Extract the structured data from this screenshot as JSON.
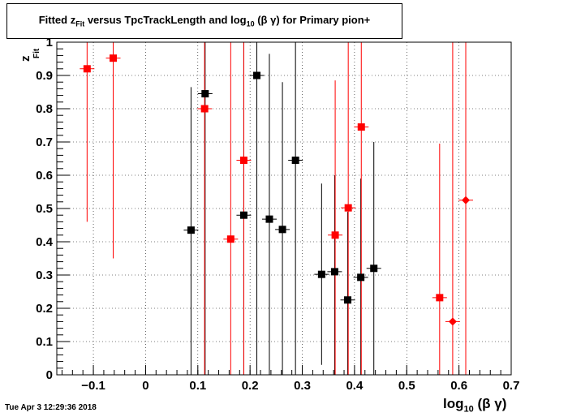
{
  "title": {
    "prefix": "Fitted  z",
    "sub": "Fit",
    "middle": "  versus TpcTrackLength and log",
    "sub2": "10",
    "suffix": " (β γ) for Primary pion+"
  },
  "ylabel": {
    "main": "z",
    "sub": "Fit"
  },
  "xlabel": {
    "main": "log",
    "sub": "10",
    "suffix": " (β γ)"
  },
  "timestamp": "Tue Apr  3 12:29:36 2018",
  "chart_data": {
    "type": "scatter",
    "xlim": [
      -0.17,
      0.7
    ],
    "ylim": [
      0,
      1
    ],
    "x_ticks": [
      -0.1,
      0,
      0.1,
      0.2,
      0.3,
      0.4,
      0.5,
      0.6,
      0.7
    ],
    "x_tick_labels": [
      "−0.1",
      "0",
      "0.1",
      "0.2",
      "0.3",
      "0.4",
      "0.5",
      "0.6",
      "0.7"
    ],
    "y_ticks": [
      0,
      0.1,
      0.2,
      0.3,
      0.4,
      0.5,
      0.6,
      0.7,
      0.8,
      0.9,
      1
    ],
    "y_tick_labels": [
      "0",
      "0.1",
      "0.2",
      "0.3",
      "0.4",
      "0.5",
      "0.6",
      "0.7",
      "0.8",
      "0.9",
      "1"
    ],
    "grid": true,
    "series": [
      {
        "color": "#000000",
        "marker": "square",
        "points": [
          {
            "x": 0.087,
            "y": 0.435,
            "lo": 0.0,
            "hi": 0.865
          },
          {
            "x": 0.114,
            "y": 0.845,
            "lo": 0.0,
            "hi": 1.0
          },
          {
            "x": 0.188,
            "y": 0.48,
            "lo": 0.0,
            "hi": 1.0
          },
          {
            "x": 0.213,
            "y": 0.9,
            "lo": 0.0,
            "hi": 1.0
          },
          {
            "x": 0.237,
            "y": 0.468,
            "lo": 0.0,
            "hi": 0.965
          },
          {
            "x": 0.262,
            "y": 0.437,
            "lo": 0.0,
            "hi": 0.88
          },
          {
            "x": 0.287,
            "y": 0.645,
            "lo": 0.0,
            "hi": 1.0
          },
          {
            "x": 0.337,
            "y": 0.302,
            "lo": 0.03,
            "hi": 0.575
          },
          {
            "x": 0.362,
            "y": 0.31,
            "lo": 0.0,
            "hi": 0.6
          },
          {
            "x": 0.387,
            "y": 0.225,
            "lo": 0.0,
            "hi": 0.49
          },
          {
            "x": 0.412,
            "y": 0.293,
            "lo": 0.0,
            "hi": 0.59
          },
          {
            "x": 0.437,
            "y": 0.32,
            "lo": 0.0,
            "hi": 0.7
          }
        ]
      },
      {
        "color": "#ff0000",
        "marker": "square",
        "points": [
          {
            "x": -0.112,
            "y": 0.92,
            "lo": 0.46,
            "hi": 1.0
          },
          {
            "x": -0.062,
            "y": 0.952,
            "lo": 0.35,
            "hi": 1.0
          },
          {
            "x": 0.113,
            "y": 0.8,
            "lo": 0.0,
            "hi": 1.0
          },
          {
            "x": 0.163,
            "y": 0.408,
            "lo": 0.0,
            "hi": 1.0
          },
          {
            "x": 0.188,
            "y": 0.645,
            "lo": 0.0,
            "hi": 1.0
          },
          {
            "x": 0.363,
            "y": 0.42,
            "lo": 0.0,
            "hi": 0.885
          },
          {
            "x": 0.388,
            "y": 0.502,
            "lo": 0.0,
            "hi": 1.0
          },
          {
            "x": 0.413,
            "y": 0.745,
            "lo": 0.0,
            "hi": 1.0
          },
          {
            "x": 0.563,
            "y": 0.232,
            "lo": 0.0,
            "hi": 0.695
          }
        ]
      },
      {
        "color": "#ff0000",
        "marker": "diamond",
        "points": [
          {
            "x": 0.588,
            "y": 0.16,
            "lo": 0.0,
            "hi": 1.0
          },
          {
            "x": 0.613,
            "y": 0.525,
            "lo": 0.0,
            "hi": 1.0
          }
        ]
      }
    ]
  }
}
